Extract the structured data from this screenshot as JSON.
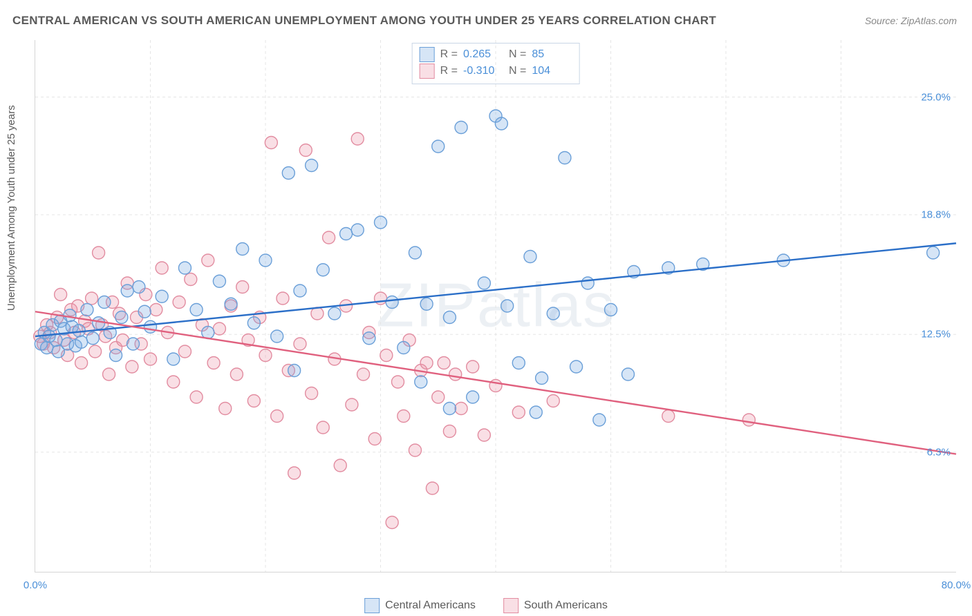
{
  "title": "CENTRAL AMERICAN VS SOUTH AMERICAN UNEMPLOYMENT AMONG YOUTH UNDER 25 YEARS CORRELATION CHART",
  "source": "Source: ZipAtlas.com",
  "watermark": "ZIPatlas",
  "ylabel": "Unemployment Among Youth under 25 years",
  "chart": {
    "type": "scatter-with-regression",
    "background_color": "#ffffff",
    "grid_color": "#e5e5e5",
    "grid_dash": true,
    "axis_color": "#d5d5d5",
    "xlim": [
      0,
      80
    ],
    "ylim": [
      0,
      28
    ],
    "x_ticks": [
      0,
      80
    ],
    "x_tick_labels": [
      "0.0%",
      "80.0%"
    ],
    "y_ticks": [
      6.3,
      12.5,
      18.8,
      25.0
    ],
    "y_tick_labels": [
      "6.3%",
      "12.5%",
      "18.8%",
      "25.0%"
    ],
    "y_tick_color": "#4a8fd8",
    "x_tick_color": "#4a8fd8",
    "v_grid_at": [
      10,
      20,
      30,
      40,
      50,
      60,
      70
    ],
    "marker_radius": 9,
    "marker_stroke_width": 1.4,
    "regression_line_width": 2.4,
    "series": [
      {
        "name": "Central Americans",
        "fill_color": "rgba(120,168,224,0.30)",
        "stroke_color": "#6a9fd8",
        "line_color": "#2b6fc8",
        "stats": {
          "R": "0.265",
          "N": "85"
        },
        "regression": {
          "x1": 0,
          "y1": 12.4,
          "x2": 80,
          "y2": 17.3
        },
        "points": [
          [
            0.5,
            12.0
          ],
          [
            0.8,
            12.6
          ],
          [
            1.0,
            11.8
          ],
          [
            1.2,
            12.4
          ],
          [
            1.5,
            13.0
          ],
          [
            1.8,
            12.2
          ],
          [
            2.0,
            11.6
          ],
          [
            2.2,
            13.2
          ],
          [
            2.5,
            12.8
          ],
          [
            2.8,
            12.0
          ],
          [
            3.0,
            13.5
          ],
          [
            3.2,
            12.9
          ],
          [
            3.5,
            11.9
          ],
          [
            3.8,
            12.7
          ],
          [
            4.0,
            12.1
          ],
          [
            4.5,
            13.8
          ],
          [
            5.0,
            12.3
          ],
          [
            5.5,
            13.1
          ],
          [
            6.0,
            14.2
          ],
          [
            6.5,
            12.6
          ],
          [
            7.0,
            11.4
          ],
          [
            7.5,
            13.4
          ],
          [
            8.0,
            14.8
          ],
          [
            8.5,
            12.0
          ],
          [
            9.0,
            15.0
          ],
          [
            9.5,
            13.7
          ],
          [
            10.0,
            12.9
          ],
          [
            11.0,
            14.5
          ],
          [
            12.0,
            11.2
          ],
          [
            13.0,
            16.0
          ],
          [
            14.0,
            13.8
          ],
          [
            15.0,
            12.6
          ],
          [
            16.0,
            15.3
          ],
          [
            17.0,
            14.1
          ],
          [
            18.0,
            17.0
          ],
          [
            19.0,
            13.1
          ],
          [
            20.0,
            16.4
          ],
          [
            21.0,
            12.4
          ],
          [
            22.0,
            21.0
          ],
          [
            22.5,
            10.6
          ],
          [
            23.0,
            14.8
          ],
          [
            24.0,
            21.4
          ],
          [
            25.0,
            15.9
          ],
          [
            26.0,
            13.6
          ],
          [
            27.0,
            17.8
          ],
          [
            28.0,
            18.0
          ],
          [
            29.0,
            12.3
          ],
          [
            30.0,
            18.4
          ],
          [
            31.0,
            14.2
          ],
          [
            32.0,
            11.8
          ],
          [
            33.0,
            16.8
          ],
          [
            33.5,
            10.0
          ],
          [
            34.0,
            14.1
          ],
          [
            35.0,
            22.4
          ],
          [
            36.0,
            13.4
          ],
          [
            36.0,
            8.6
          ],
          [
            37.0,
            23.4
          ],
          [
            38.0,
            9.2
          ],
          [
            39.0,
            15.2
          ],
          [
            40.0,
            24.0
          ],
          [
            40.5,
            23.6
          ],
          [
            41.0,
            14.0
          ],
          [
            42.0,
            11.0
          ],
          [
            43.0,
            16.6
          ],
          [
            43.5,
            8.4
          ],
          [
            44.0,
            10.2
          ],
          [
            45.0,
            13.6
          ],
          [
            46.0,
            21.8
          ],
          [
            47.0,
            10.8
          ],
          [
            48.0,
            15.2
          ],
          [
            49.0,
            8.0
          ],
          [
            50.0,
            13.8
          ],
          [
            51.5,
            10.4
          ],
          [
            52.0,
            15.8
          ],
          [
            55.0,
            16.0
          ],
          [
            58.0,
            16.2
          ],
          [
            65.0,
            16.4
          ],
          [
            78.0,
            16.8
          ]
        ]
      },
      {
        "name": "South Americans",
        "fill_color": "rgba(235,150,170,0.30)",
        "stroke_color": "#e28ca0",
        "line_color": "#e0607e",
        "stats": {
          "R": "-0.310",
          "N": "104"
        },
        "regression": {
          "x1": 0,
          "y1": 13.7,
          "x2": 80,
          "y2": 6.2
        },
        "points": [
          [
            0.4,
            12.4
          ],
          [
            0.7,
            12.0
          ],
          [
            1.0,
            13.0
          ],
          [
            1.3,
            12.6
          ],
          [
            1.6,
            11.8
          ],
          [
            1.9,
            13.4
          ],
          [
            2.2,
            14.6
          ],
          [
            2.5,
            12.2
          ],
          [
            2.8,
            11.4
          ],
          [
            3.1,
            13.8
          ],
          [
            3.4,
            12.6
          ],
          [
            3.7,
            14.0
          ],
          [
            4.0,
            11.0
          ],
          [
            4.3,
            13.2
          ],
          [
            4.6,
            12.8
          ],
          [
            4.9,
            14.4
          ],
          [
            5.2,
            11.6
          ],
          [
            5.5,
            16.8
          ],
          [
            5.8,
            13.0
          ],
          [
            6.1,
            12.4
          ],
          [
            6.4,
            10.4
          ],
          [
            6.7,
            14.2
          ],
          [
            7.0,
            11.8
          ],
          [
            7.3,
            13.6
          ],
          [
            7.6,
            12.2
          ],
          [
            8.0,
            15.2
          ],
          [
            8.4,
            10.8
          ],
          [
            8.8,
            13.4
          ],
          [
            9.2,
            12.0
          ],
          [
            9.6,
            14.6
          ],
          [
            10.0,
            11.2
          ],
          [
            10.5,
            13.8
          ],
          [
            11.0,
            16.0
          ],
          [
            11.5,
            12.6
          ],
          [
            12.0,
            10.0
          ],
          [
            12.5,
            14.2
          ],
          [
            13.0,
            11.6
          ],
          [
            13.5,
            15.4
          ],
          [
            14.0,
            9.2
          ],
          [
            14.5,
            13.0
          ],
          [
            15.0,
            16.4
          ],
          [
            15.5,
            11.0
          ],
          [
            16.0,
            12.8
          ],
          [
            16.5,
            8.6
          ],
          [
            17.0,
            14.0
          ],
          [
            17.5,
            10.4
          ],
          [
            18.0,
            15.0
          ],
          [
            18.5,
            12.2
          ],
          [
            19.0,
            9.0
          ],
          [
            19.5,
            13.4
          ],
          [
            20.0,
            11.4
          ],
          [
            20.5,
            22.6
          ],
          [
            21.0,
            8.2
          ],
          [
            21.5,
            14.4
          ],
          [
            22.0,
            10.6
          ],
          [
            22.5,
            5.2
          ],
          [
            23.0,
            12.0
          ],
          [
            23.5,
            22.2
          ],
          [
            24.0,
            9.4
          ],
          [
            24.5,
            13.6
          ],
          [
            25.0,
            7.6
          ],
          [
            25.5,
            17.6
          ],
          [
            26.0,
            11.2
          ],
          [
            26.5,
            5.6
          ],
          [
            27.0,
            14.0
          ],
          [
            27.5,
            8.8
          ],
          [
            28.0,
            22.8
          ],
          [
            28.5,
            10.4
          ],
          [
            29.0,
            12.6
          ],
          [
            29.5,
            7.0
          ],
          [
            30.0,
            14.4
          ],
          [
            30.5,
            11.4
          ],
          [
            31.0,
            2.6
          ],
          [
            31.5,
            10.0
          ],
          [
            32.0,
            8.2
          ],
          [
            32.5,
            12.2
          ],
          [
            33.0,
            6.4
          ],
          [
            33.5,
            10.6
          ],
          [
            34.0,
            11.0
          ],
          [
            34.5,
            4.4
          ],
          [
            35.0,
            9.2
          ],
          [
            35.5,
            11.0
          ],
          [
            36.0,
            7.4
          ],
          [
            36.5,
            10.4
          ],
          [
            37.0,
            8.6
          ],
          [
            38.0,
            10.8
          ],
          [
            39.0,
            7.2
          ],
          [
            40.0,
            9.8
          ],
          [
            42.0,
            8.4
          ],
          [
            45.0,
            9.0
          ],
          [
            55.0,
            8.2
          ],
          [
            62.0,
            8.0
          ]
        ]
      }
    ]
  },
  "legend": {
    "series1_label": "Central Americans",
    "series2_label": "South Americans"
  }
}
